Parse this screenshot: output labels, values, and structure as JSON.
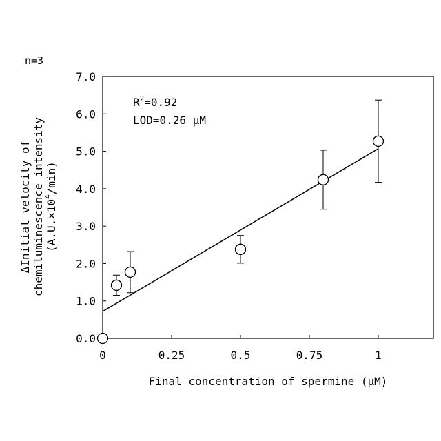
{
  "chart_data": {
    "type": "scatter",
    "n_label": "n=3",
    "xlabel": "Final concentration of spermine (μM)",
    "ylabel_lines": [
      "ΔInitial velocity of",
      "chemiluminescence intensity"
    ],
    "ylabel_unit": {
      "prefix": "(A.U.×10",
      "sup": "4",
      "suffix": "/min)"
    },
    "xlim": [
      0,
      1.2
    ],
    "ylim": [
      0,
      7.0
    ],
    "x_ticks": [
      0,
      0.25,
      0.5,
      0.75,
      1
    ],
    "x_tick_labels": [
      "0",
      "0.25",
      "0.5",
      "0.75",
      "1"
    ],
    "y_ticks": [
      0,
      1,
      2,
      3,
      4,
      5,
      6,
      7
    ],
    "y_tick_labels": [
      "0.0",
      "1.0",
      "2.0",
      "3.0",
      "4.0",
      "5.0",
      "6.0",
      "7.0"
    ],
    "points": [
      {
        "x": 0,
        "y": 0.0,
        "err": 0
      },
      {
        "x": 0.05,
        "y": 1.42,
        "err": 0.27
      },
      {
        "x": 0.1,
        "y": 1.77,
        "err": 0.55
      },
      {
        "x": 0.5,
        "y": 2.38,
        "err": 0.37
      },
      {
        "x": 0.8,
        "y": 4.24,
        "err": 0.79
      },
      {
        "x": 1.0,
        "y": 5.27,
        "err": 1.1
      }
    ],
    "fit_line": {
      "x": [
        0,
        1.0
      ],
      "y": [
        0.72,
        5.07
      ]
    },
    "annotation": {
      "r2_prefix": "R",
      "r2_sup": "2",
      "r2_value": "=0.92",
      "lod": "LOD=0.26 μM"
    },
    "grid": false
  }
}
